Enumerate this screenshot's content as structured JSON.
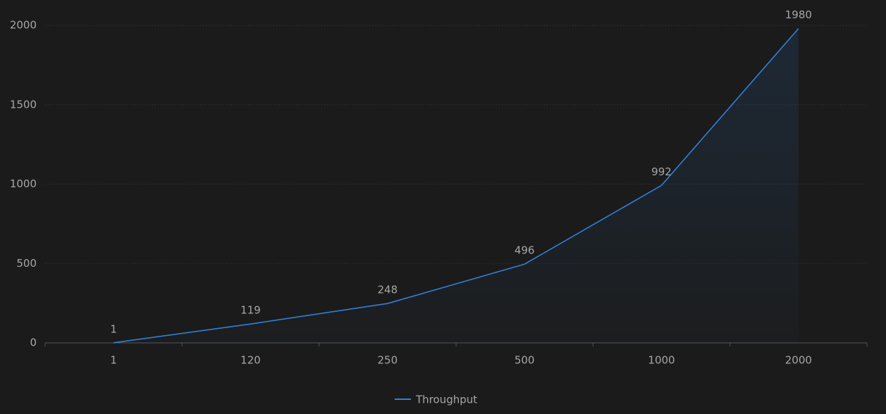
{
  "chart_data": {
    "type": "line",
    "categories": [
      "1",
      "120",
      "250",
      "500",
      "1000",
      "2000"
    ],
    "series": [
      {
        "name": "Throughput",
        "color": "#2f80d9",
        "values": [
          1,
          119,
          248,
          496,
          992,
          1980
        ]
      }
    ],
    "ylim": [
      0,
      2000
    ],
    "yticks": [
      0,
      500,
      1000,
      1500,
      2000
    ],
    "grid": true,
    "area": true,
    "legend": "bottom"
  }
}
